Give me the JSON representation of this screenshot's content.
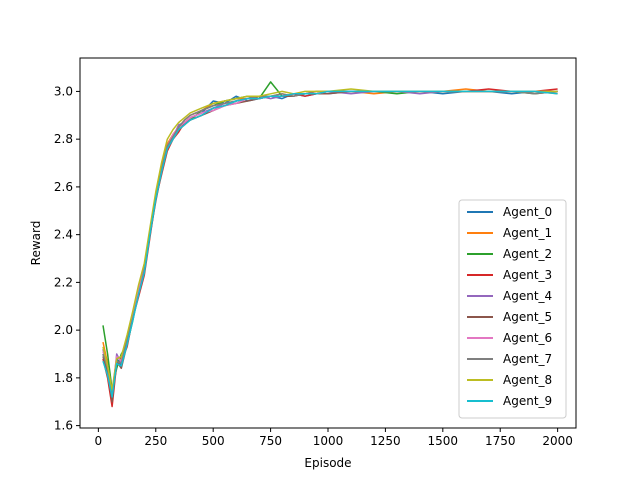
{
  "chart_data": {
    "type": "line",
    "title": "",
    "xlabel": "Episode",
    "ylabel": "Reward",
    "xlim": [
      -80,
      2080
    ],
    "ylim": [
      1.59,
      3.14
    ],
    "xticks": [
      0,
      250,
      500,
      750,
      1000,
      1250,
      1500,
      1750,
      2000
    ],
    "yticks": [
      1.6,
      1.8,
      2.0,
      2.2,
      2.4,
      2.6,
      2.8,
      3.0
    ],
    "xtick_labels": [
      "0",
      "250",
      "500",
      "750",
      "1000",
      "1250",
      "1500",
      "1750",
      "2000"
    ],
    "ytick_labels": [
      "1.6",
      "1.8",
      "2.0",
      "2.2",
      "2.4",
      "2.6",
      "2.8",
      "3.0"
    ],
    "grid": false,
    "legend_position": "lower-right",
    "x": [
      20,
      40,
      60,
      80,
      100,
      125,
      150,
      175,
      200,
      225,
      250,
      275,
      300,
      325,
      350,
      375,
      400,
      450,
      500,
      550,
      600,
      650,
      700,
      750,
      800,
      850,
      900,
      950,
      1000,
      1100,
      1200,
      1300,
      1400,
      1500,
      1600,
      1700,
      1800,
      1900,
      2000
    ],
    "series": [
      {
        "name": "Agent_0",
        "color": "#1f77b4",
        "values": [
          1.9,
          1.84,
          1.72,
          1.88,
          1.85,
          1.95,
          2.06,
          2.15,
          2.25,
          2.4,
          2.55,
          2.66,
          2.76,
          2.8,
          2.84,
          2.86,
          2.89,
          2.91,
          2.96,
          2.95,
          2.98,
          2.96,
          2.97,
          2.98,
          2.97,
          2.99,
          2.98,
          2.99,
          2.99,
          3.0,
          3.0,
          3.0,
          3.0,
          2.99,
          3.0,
          3.0,
          2.99,
          3.0,
          3.0
        ]
      },
      {
        "name": "Agent_1",
        "color": "#ff7f0e",
        "values": [
          1.95,
          1.86,
          1.73,
          1.85,
          1.88,
          1.97,
          2.07,
          2.18,
          2.27,
          2.42,
          2.57,
          2.68,
          2.78,
          2.82,
          2.85,
          2.88,
          2.9,
          2.92,
          2.95,
          2.96,
          2.97,
          2.97,
          2.98,
          2.98,
          2.99,
          2.98,
          2.99,
          3.0,
          3.0,
          3.0,
          2.99,
          3.0,
          3.0,
          3.0,
          3.01,
          3.0,
          3.0,
          3.0,
          2.99
        ]
      },
      {
        "name": "Agent_2",
        "color": "#2ca02c",
        "values": [
          2.02,
          1.9,
          1.75,
          1.84,
          1.9,
          1.94,
          2.04,
          2.16,
          2.24,
          2.41,
          2.56,
          2.67,
          2.77,
          2.81,
          2.85,
          2.87,
          2.88,
          2.92,
          2.94,
          2.96,
          2.97,
          2.98,
          2.97,
          3.04,
          2.98,
          2.99,
          2.99,
          2.99,
          3.0,
          3.0,
          3.0,
          2.99,
          3.0,
          3.0,
          3.0,
          3.0,
          3.0,
          2.99,
          3.0
        ]
      },
      {
        "name": "Agent_3",
        "color": "#d62728",
        "values": [
          1.88,
          1.8,
          1.68,
          1.86,
          1.87,
          1.93,
          2.05,
          2.14,
          2.23,
          2.39,
          2.55,
          2.65,
          2.75,
          2.8,
          2.83,
          2.87,
          2.88,
          2.9,
          2.93,
          2.94,
          2.96,
          2.97,
          2.97,
          2.98,
          2.98,
          2.99,
          2.98,
          2.99,
          3.0,
          3.0,
          3.0,
          3.0,
          3.0,
          3.0,
          3.0,
          3.01,
          3.0,
          3.0,
          3.01
        ]
      },
      {
        "name": "Agent_4",
        "color": "#9467bd",
        "values": [
          1.92,
          1.83,
          1.71,
          1.9,
          1.86,
          1.96,
          2.06,
          2.17,
          2.26,
          2.41,
          2.56,
          2.66,
          2.77,
          2.81,
          2.86,
          2.87,
          2.89,
          2.91,
          2.93,
          2.95,
          2.96,
          2.97,
          2.98,
          2.97,
          2.98,
          2.99,
          2.99,
          2.99,
          3.0,
          2.99,
          3.0,
          3.0,
          2.99,
          3.0,
          3.0,
          3.0,
          3.0,
          3.0,
          3.0
        ]
      },
      {
        "name": "Agent_5",
        "color": "#8c564b",
        "values": [
          1.89,
          1.82,
          1.7,
          1.87,
          1.84,
          1.94,
          2.05,
          2.16,
          2.24,
          2.4,
          2.54,
          2.66,
          2.76,
          2.81,
          2.84,
          2.86,
          2.88,
          2.9,
          2.92,
          2.94,
          2.95,
          2.96,
          2.97,
          2.98,
          2.98,
          2.98,
          2.99,
          2.99,
          2.99,
          3.0,
          3.0,
          3.0,
          3.0,
          3.0,
          3.0,
          3.0,
          3.0,
          3.0,
          3.0
        ]
      },
      {
        "name": "Agent_6",
        "color": "#e377c2",
        "values": [
          1.91,
          1.85,
          1.74,
          1.89,
          1.87,
          1.95,
          2.07,
          2.17,
          2.25,
          2.42,
          2.56,
          2.67,
          2.77,
          2.82,
          2.85,
          2.87,
          2.89,
          2.91,
          2.92,
          2.94,
          2.95,
          2.97,
          2.97,
          2.98,
          2.98,
          2.99,
          2.99,
          2.99,
          3.0,
          3.0,
          3.0,
          3.0,
          3.0,
          3.0,
          3.0,
          3.0,
          3.0,
          3.0,
          3.0
        ]
      },
      {
        "name": "Agent_7",
        "color": "#7f7f7f",
        "values": [
          1.9,
          1.84,
          1.73,
          1.87,
          1.86,
          1.96,
          2.05,
          2.15,
          2.25,
          2.41,
          2.55,
          2.67,
          2.77,
          2.81,
          2.85,
          2.88,
          2.9,
          2.92,
          2.94,
          2.95,
          2.96,
          2.97,
          2.98,
          2.98,
          2.99,
          2.98,
          2.99,
          3.0,
          3.0,
          3.0,
          3.0,
          3.0,
          3.0,
          3.0,
          3.0,
          3.0,
          3.0,
          2.99,
          3.0
        ]
      },
      {
        "name": "Agent_8",
        "color": "#bcbd22",
        "values": [
          1.93,
          1.85,
          1.75,
          1.88,
          1.89,
          1.98,
          2.08,
          2.19,
          2.28,
          2.43,
          2.58,
          2.7,
          2.8,
          2.84,
          2.87,
          2.89,
          2.91,
          2.93,
          2.95,
          2.96,
          2.97,
          2.98,
          2.98,
          2.99,
          3.0,
          2.99,
          3.0,
          3.0,
          3.0,
          3.01,
          3.0,
          3.0,
          3.0,
          3.0,
          3.0,
          3.0,
          3.0,
          3.0,
          3.0
        ]
      },
      {
        "name": "Agent_9",
        "color": "#17becf",
        "values": [
          1.87,
          1.81,
          1.72,
          1.86,
          1.85,
          1.94,
          2.04,
          2.15,
          2.24,
          2.4,
          2.55,
          2.66,
          2.76,
          2.8,
          2.84,
          2.86,
          2.88,
          2.9,
          2.93,
          2.94,
          2.96,
          2.97,
          2.97,
          2.98,
          2.98,
          2.99,
          2.99,
          2.99,
          3.0,
          3.0,
          3.0,
          3.0,
          3.0,
          3.0,
          3.0,
          3.0,
          3.0,
          3.0,
          2.99
        ]
      }
    ]
  }
}
